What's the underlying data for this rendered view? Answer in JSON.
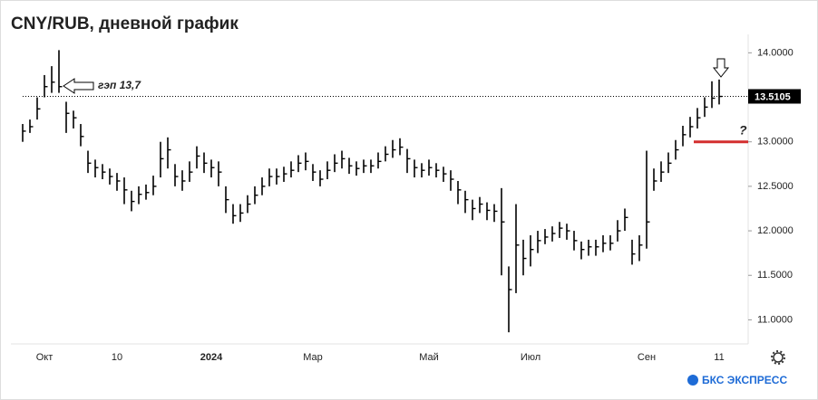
{
  "chart_data": {
    "type": "ohlc",
    "title": "CNY/RUB, дневной график",
    "categories": [
      null,
      null,
      null,
      "Окт",
      null,
      null,
      null,
      null,
      null,
      null,
      null,
      null,
      null,
      "10",
      null,
      null,
      null,
      null,
      null,
      null,
      null,
      null,
      null,
      null,
      null,
      null,
      "2024",
      null,
      null,
      null,
      null,
      null,
      null,
      null,
      null,
      null,
      null,
      null,
      null,
      null,
      "Мар",
      null,
      null,
      null,
      null,
      null,
      null,
      null,
      null,
      null,
      null,
      null,
      null,
      null,
      null,
      null,
      "Май",
      null,
      null,
      null,
      null,
      null,
      null,
      null,
      null,
      null,
      null,
      null,
      null,
      null,
      "Июл",
      null,
      null,
      null,
      null,
      null,
      null,
      null,
      null,
      null,
      null,
      null,
      null,
      null,
      null,
      null,
      "Сен",
      null,
      null,
      null,
      null,
      null,
      null,
      null,
      null,
      null,
      "11"
    ],
    "close": [
      13.12,
      13.17,
      13.37,
      13.62,
      13.67,
      13.62,
      13.32,
      13.27,
      13.06,
      12.76,
      12.71,
      12.66,
      12.61,
      12.56,
      12.46,
      12.33,
      12.41,
      12.43,
      12.5,
      12.81,
      12.91,
      12.61,
      12.56,
      12.66,
      12.84,
      12.76,
      12.71,
      12.66,
      12.35,
      12.17,
      12.2,
      12.3,
      12.4,
      12.5,
      12.61,
      12.61,
      12.64,
      12.68,
      12.76,
      12.78,
      12.66,
      12.58,
      12.68,
      12.76,
      12.81,
      12.73,
      12.7,
      12.73,
      12.73,
      12.78,
      12.86,
      12.91,
      12.94,
      12.81,
      12.71,
      12.68,
      12.71,
      12.68,
      12.64,
      12.58,
      12.46,
      12.35,
      12.25,
      12.3,
      12.23,
      12.22,
      12.1,
      11.34,
      11.84,
      11.69,
      11.79,
      11.89,
      11.93,
      11.97,
      12.03,
      12.0,
      11.89,
      11.79,
      11.82,
      11.82,
      11.86,
      11.86,
      12.0,
      12.15,
      11.74,
      11.84,
      12.1,
      12.56,
      12.66,
      12.76,
      12.91,
      13.08,
      13.17,
      13.27,
      13.39,
      13.49,
      13.51
    ],
    "high": [
      13.2,
      13.25,
      13.5,
      13.75,
      13.85,
      14.03,
      13.45,
      13.35,
      13.2,
      12.9,
      12.8,
      12.75,
      12.7,
      12.65,
      12.6,
      12.45,
      12.5,
      12.52,
      12.62,
      13.0,
      13.05,
      12.75,
      12.68,
      12.78,
      12.95,
      12.88,
      12.8,
      12.78,
      12.5,
      12.3,
      12.3,
      12.4,
      12.5,
      12.6,
      12.7,
      12.7,
      12.72,
      12.78,
      12.85,
      12.88,
      12.75,
      12.68,
      12.78,
      12.86,
      12.9,
      12.82,
      12.78,
      12.8,
      12.8,
      12.88,
      12.95,
      13.02,
      13.04,
      12.92,
      12.8,
      12.76,
      12.8,
      12.76,
      12.72,
      12.68,
      12.56,
      12.45,
      12.35,
      12.38,
      12.32,
      12.3,
      12.48,
      11.6,
      12.3,
      11.9,
      11.95,
      12.0,
      12.02,
      12.05,
      12.1,
      12.08,
      12.0,
      11.88,
      11.9,
      11.9,
      11.95,
      11.95,
      12.12,
      12.25,
      11.9,
      11.95,
      12.9,
      12.7,
      12.78,
      12.88,
      13.02,
      13.18,
      13.28,
      13.38,
      13.5,
      13.68,
      13.7
    ],
    "low": [
      13.0,
      13.1,
      13.25,
      13.5,
      13.55,
      13.55,
      13.1,
      13.15,
      12.95,
      12.65,
      12.6,
      12.58,
      12.52,
      12.45,
      12.3,
      12.22,
      12.3,
      12.35,
      12.4,
      12.6,
      12.7,
      12.5,
      12.45,
      12.55,
      12.7,
      12.65,
      12.6,
      12.5,
      12.2,
      12.08,
      12.1,
      12.2,
      12.3,
      12.4,
      12.5,
      12.52,
      12.55,
      12.6,
      12.66,
      12.68,
      12.56,
      12.5,
      12.58,
      12.66,
      12.7,
      12.64,
      12.62,
      12.65,
      12.65,
      12.7,
      12.78,
      12.82,
      12.85,
      12.65,
      12.6,
      12.6,
      12.62,
      12.6,
      12.55,
      12.45,
      12.3,
      12.2,
      12.12,
      12.2,
      12.12,
      12.1,
      11.5,
      10.86,
      11.3,
      11.5,
      11.6,
      11.75,
      11.85,
      11.88,
      11.92,
      11.9,
      11.78,
      11.68,
      11.72,
      11.72,
      11.76,
      11.78,
      11.88,
      12.0,
      11.62,
      11.66,
      11.8,
      12.45,
      12.55,
      12.65,
      12.8,
      12.95,
      13.05,
      13.15,
      13.28,
      13.38,
      13.42
    ],
    "color": "#000000",
    "ylim": [
      10.75,
      14.39
    ],
    "yticks": [
      {
        "value": 11,
        "label": "11.0000"
      },
      {
        "value": 11.5,
        "label": "11.5000"
      },
      {
        "value": 12,
        "label": "12.0000"
      },
      {
        "value": 12.5,
        "label": "12.5000"
      },
      {
        "value": 13,
        "label": "13.0000"
      },
      {
        "value": 13.5,
        "label": "13.5000"
      },
      {
        "value": 14,
        "label": "14.0000"
      }
    ],
    "last_price": 13.5105,
    "gap_note": "гэп 13,7",
    "level": 13,
    "level_color": "#d32f2f",
    "level_note": "?",
    "logo": "БКС ЭКСПРЕСС"
  }
}
